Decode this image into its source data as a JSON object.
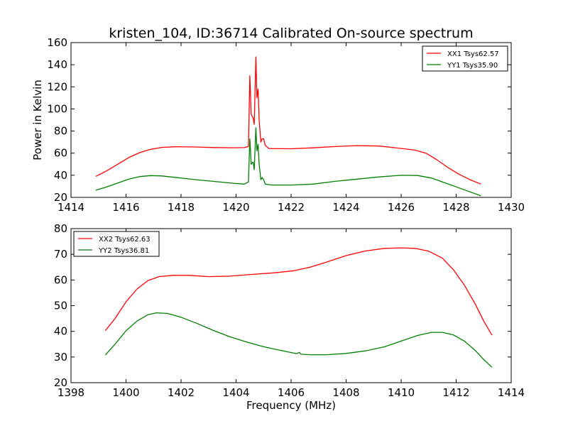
{
  "figure_title": "kristen_104, ID:36714 Calibrated On-source spectrum",
  "chart_data": [
    {
      "type": "line",
      "title": "kristen_104, ID:36714 Calibrated On-source spectrum",
      "xlabel": "",
      "ylabel": "Power in Kelvin",
      "xlim": [
        1414,
        1430
      ],
      "ylim": [
        20,
        160
      ],
      "xticks": [
        1414,
        1416,
        1418,
        1420,
        1422,
        1424,
        1426,
        1428,
        1430
      ],
      "yticks": [
        20,
        40,
        60,
        80,
        100,
        120,
        140,
        160
      ],
      "grid": false,
      "legend": "top-right",
      "series": [
        {
          "name": "XX1 Tsys62.57",
          "color": "#ff0000",
          "points": [
            [
              1414.9,
              39
            ],
            [
              1415.3,
              44
            ],
            [
              1415.7,
              50
            ],
            [
              1416.1,
              56
            ],
            [
              1416.5,
              60.5
            ],
            [
              1416.9,
              63.5
            ],
            [
              1417.3,
              65.2
            ],
            [
              1417.8,
              65.8
            ],
            [
              1418.5,
              65.6
            ],
            [
              1419.2,
              65.1
            ],
            [
              1419.9,
              64.9
            ],
            [
              1420.3,
              65
            ],
            [
              1420.45,
              66
            ],
            [
              1420.5,
              130
            ],
            [
              1420.55,
              95
            ],
            [
              1420.62,
              92
            ],
            [
              1420.66,
              86
            ],
            [
              1420.72,
              147
            ],
            [
              1420.76,
              110
            ],
            [
              1420.8,
              118
            ],
            [
              1420.84,
              90
            ],
            [
              1420.9,
              70
            ],
            [
              1420.95,
              73
            ],
            [
              1421.0,
              73
            ],
            [
              1421.06,
              67
            ],
            [
              1421.2,
              64.2
            ],
            [
              1422,
              64
            ],
            [
              1422.8,
              64.8
            ],
            [
              1423.6,
              66
            ],
            [
              1424.4,
              66.8
            ],
            [
              1425.2,
              66.4
            ],
            [
              1425.9,
              64.6
            ],
            [
              1426.5,
              62.8
            ],
            [
              1426.9,
              60
            ],
            [
              1427.3,
              54
            ],
            [
              1427.7,
              47
            ],
            [
              1428.1,
              41
            ],
            [
              1428.5,
              36
            ],
            [
              1428.9,
              32
            ]
          ]
        },
        {
          "name": "YY1 Tsys35.90",
          "color": "#008000",
          "points": [
            [
              1414.9,
              26.5
            ],
            [
              1415.3,
              29.5
            ],
            [
              1415.7,
              33
            ],
            [
              1416.1,
              36.5
            ],
            [
              1416.5,
              38.8
            ],
            [
              1416.9,
              39.7
            ],
            [
              1417.3,
              39.4
            ],
            [
              1417.9,
              37.8
            ],
            [
              1418.6,
              35.8
            ],
            [
              1419.3,
              34.2
            ],
            [
              1419.9,
              32.8
            ],
            [
              1420.3,
              32
            ],
            [
              1420.45,
              34
            ],
            [
              1420.5,
              73
            ],
            [
              1420.55,
              50
            ],
            [
              1420.62,
              52
            ],
            [
              1420.66,
              45
            ],
            [
              1420.72,
              83
            ],
            [
              1420.76,
              62
            ],
            [
              1420.8,
              68
            ],
            [
              1420.84,
              50
            ],
            [
              1420.9,
              36
            ],
            [
              1420.95,
              38
            ],
            [
              1421.0,
              36
            ],
            [
              1421.06,
              32
            ],
            [
              1421.3,
              31.2
            ],
            [
              1422,
              31.2
            ],
            [
              1422.8,
              32
            ],
            [
              1423.6,
              34.5
            ],
            [
              1424.4,
              36.5
            ],
            [
              1425.2,
              38.5
            ],
            [
              1426,
              40
            ],
            [
              1426.6,
              39.8
            ],
            [
              1427.1,
              37.5
            ],
            [
              1427.5,
              34
            ],
            [
              1428,
              29.5
            ],
            [
              1428.5,
              25
            ],
            [
              1428.9,
              21.5
            ]
          ]
        }
      ]
    },
    {
      "type": "line",
      "title": "",
      "xlabel": "Frequency (MHz)",
      "ylabel": "",
      "xlim": [
        1398,
        1414
      ],
      "ylim": [
        20,
        80
      ],
      "xticks": [
        1398,
        1400,
        1402,
        1404,
        1406,
        1408,
        1410,
        1412,
        1414
      ],
      "yticks": [
        20,
        30,
        40,
        50,
        60,
        70,
        80
      ],
      "grid": false,
      "legend": "top-left",
      "series": [
        {
          "name": "XX2 Tsys62.63",
          "color": "#ff0000",
          "points": [
            [
              1399.25,
              40.3
            ],
            [
              1399.6,
              45
            ],
            [
              1400,
              51.5
            ],
            [
              1400.4,
              56.5
            ],
            [
              1400.8,
              59.8
            ],
            [
              1401.2,
              61.3
            ],
            [
              1401.7,
              61.8
            ],
            [
              1402.3,
              61.8
            ],
            [
              1403,
              61.3
            ],
            [
              1403.8,
              61.5
            ],
            [
              1404.6,
              62.2
            ],
            [
              1405.4,
              62.8
            ],
            [
              1406.1,
              63.6
            ],
            [
              1406.7,
              65
            ],
            [
              1407.3,
              67
            ],
            [
              1408,
              69.5
            ],
            [
              1408.7,
              71.3
            ],
            [
              1409.4,
              72.3
            ],
            [
              1410,
              72.5
            ],
            [
              1410.5,
              72.3
            ],
            [
              1411,
              71.2
            ],
            [
              1411.5,
              68.5
            ],
            [
              1411.9,
              64
            ],
            [
              1412.3,
              58
            ],
            [
              1412.7,
              50.5
            ],
            [
              1413,
              44
            ],
            [
              1413.3,
              38.5
            ]
          ]
        },
        {
          "name": "YY2 Tsys36.81",
          "color": "#008000",
          "points": [
            [
              1399.25,
              30.8
            ],
            [
              1399.6,
              35
            ],
            [
              1400,
              40.2
            ],
            [
              1400.4,
              44
            ],
            [
              1400.8,
              46.5
            ],
            [
              1401.1,
              47.2
            ],
            [
              1401.5,
              47
            ],
            [
              1402,
              45.5
            ],
            [
              1402.6,
              43
            ],
            [
              1403.2,
              40.2
            ],
            [
              1403.8,
              37.8
            ],
            [
              1404.4,
              35.8
            ],
            [
              1405,
              34
            ],
            [
              1405.6,
              32.6
            ],
            [
              1406.2,
              31.3
            ],
            [
              1406.3,
              31.8
            ],
            [
              1406.35,
              31.1
            ],
            [
              1406.7,
              30.9
            ],
            [
              1407.3,
              30.9
            ],
            [
              1408,
              31.4
            ],
            [
              1408.7,
              32.4
            ],
            [
              1409.4,
              34
            ],
            [
              1410,
              36.2
            ],
            [
              1410.6,
              38.4
            ],
            [
              1411.1,
              39.6
            ],
            [
              1411.5,
              39.6
            ],
            [
              1411.9,
              38.6
            ],
            [
              1412.3,
              36.2
            ],
            [
              1412.7,
              32.5
            ],
            [
              1413,
              29
            ],
            [
              1413.3,
              26
            ]
          ]
        }
      ]
    }
  ]
}
